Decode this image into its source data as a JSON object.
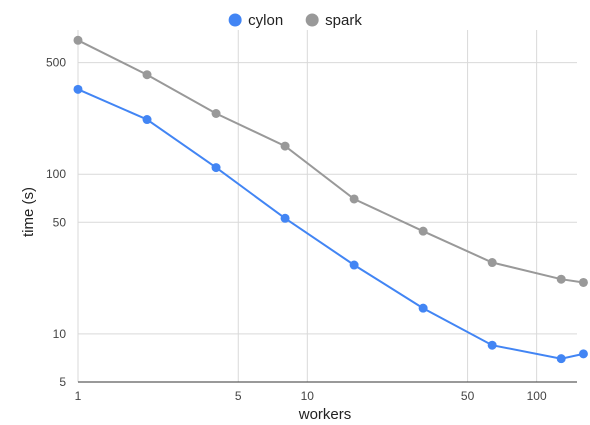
{
  "chart_data": {
    "type": "line",
    "title": "",
    "xlabel": "workers",
    "ylabel": "time (s)",
    "x_scale": "log",
    "y_scale": "log",
    "xlim": [
      1,
      150
    ],
    "ylim": [
      5,
      800
    ],
    "x_ticks": [
      1,
      5,
      10,
      50,
      100
    ],
    "y_ticks": [
      5,
      10,
      50,
      100,
      500
    ],
    "grid": true,
    "legend_position": "top-center",
    "x": [
      1,
      2,
      4,
      8,
      16,
      32,
      64,
      128,
      160
    ],
    "series": [
      {
        "name": "cylon",
        "color": "#4285f4",
        "values": [
          340,
          220,
          110,
          53,
          27,
          14.5,
          8.5,
          7,
          7.5
        ]
      },
      {
        "name": "spark",
        "color": "#999999",
        "values": [
          690,
          420,
          240,
          150,
          70,
          44,
          28,
          22,
          21
        ]
      }
    ]
  }
}
